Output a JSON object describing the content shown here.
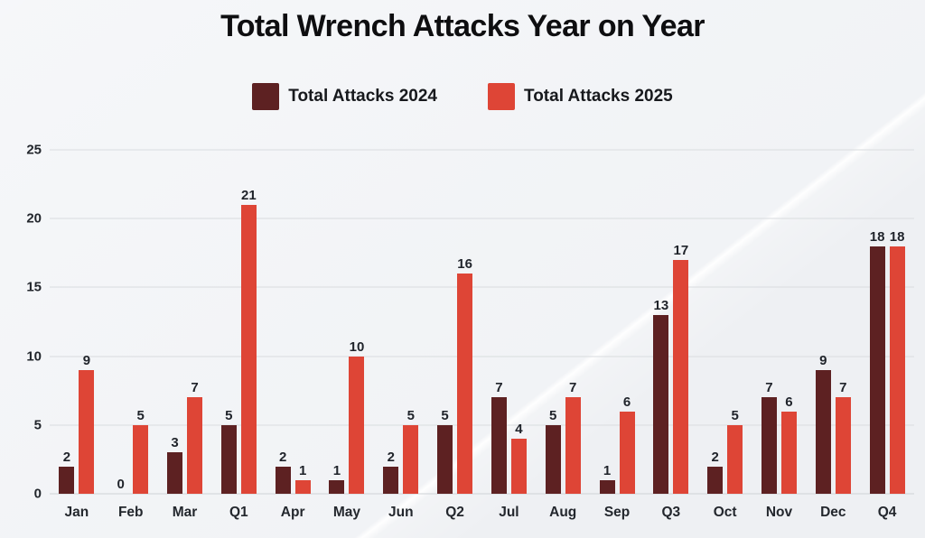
{
  "chart_data": {
    "type": "bar",
    "title": "Total Wrench Attacks Year on Year",
    "categories": [
      "Jan",
      "Feb",
      "Mar",
      "Q1",
      "Apr",
      "May",
      "Jun",
      "Q2",
      "Jul",
      "Aug",
      "Sep",
      "Q3",
      "Oct",
      "Nov",
      "Dec",
      "Q4"
    ],
    "series": [
      {
        "name": "Total Attacks 2024",
        "color": "#5d2122",
        "values": [
          2,
          0,
          3,
          5,
          2,
          1,
          2,
          5,
          7,
          5,
          1,
          13,
          2,
          7,
          9,
          18
        ]
      },
      {
        "name": "Total Attacks 2025",
        "color": "#de4536",
        "values": [
          9,
          5,
          7,
          21,
          1,
          10,
          5,
          16,
          4,
          7,
          6,
          17,
          5,
          6,
          7,
          18
        ]
      }
    ],
    "xlabel": "",
    "ylabel": "",
    "ylim": [
      0,
      25
    ],
    "yticks": [
      0,
      5,
      10,
      15,
      20,
      25
    ],
    "grid": true,
    "legend_position": "top",
    "colors": {
      "background": "#eef0f3",
      "gridline": "#d9dcdf",
      "title_text": "#0e0e10",
      "value_label_text": "#1f232a",
      "accent_diagonal": "#ffffff"
    }
  }
}
